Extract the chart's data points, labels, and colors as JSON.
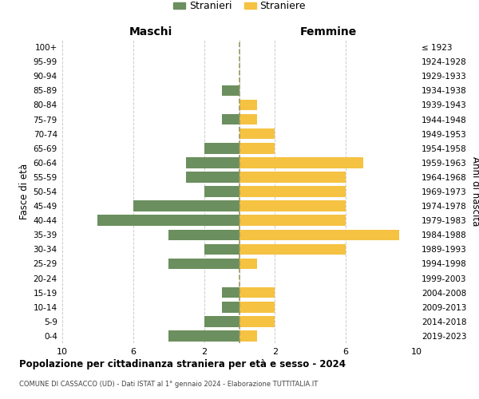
{
  "age_groups": [
    "0-4",
    "5-9",
    "10-14",
    "15-19",
    "20-24",
    "25-29",
    "30-34",
    "35-39",
    "40-44",
    "45-49",
    "50-54",
    "55-59",
    "60-64",
    "65-69",
    "70-74",
    "75-79",
    "80-84",
    "85-89",
    "90-94",
    "95-99",
    "100+"
  ],
  "birth_years": [
    "2019-2023",
    "2014-2018",
    "2009-2013",
    "2004-2008",
    "1999-2003",
    "1994-1998",
    "1989-1993",
    "1984-1988",
    "1979-1983",
    "1974-1978",
    "1969-1973",
    "1964-1968",
    "1959-1963",
    "1954-1958",
    "1949-1953",
    "1944-1948",
    "1939-1943",
    "1934-1938",
    "1929-1933",
    "1924-1928",
    "≤ 1923"
  ],
  "maschi": [
    4,
    2,
    1,
    1,
    0,
    4,
    2,
    4,
    8,
    6,
    2,
    3,
    3,
    2,
    0,
    1,
    0,
    1,
    0,
    0,
    0
  ],
  "femmine": [
    1,
    2,
    2,
    2,
    0,
    1,
    6,
    9,
    6,
    6,
    6,
    6,
    7,
    2,
    2,
    1,
    1,
    0,
    0,
    0,
    0
  ],
  "maschi_color": "#6b8f5e",
  "femmine_color": "#f5c242",
  "background_color": "#ffffff",
  "grid_color": "#cccccc",
  "dashed_line_color": "#999966",
  "title": "Popolazione per cittadinanza straniera per età e sesso - 2024",
  "subtitle": "COMUNE DI CASSACCO (UD) - Dati ISTAT al 1° gennaio 2024 - Elaborazione TUTTITALIA.IT",
  "header_left": "Maschi",
  "header_right": "Femmine",
  "ylabel_left": "Fasce di età",
  "ylabel_right": "Anni di nascita",
  "legend_maschi": "Stranieri",
  "legend_femmine": "Straniere",
  "xlim": 10
}
